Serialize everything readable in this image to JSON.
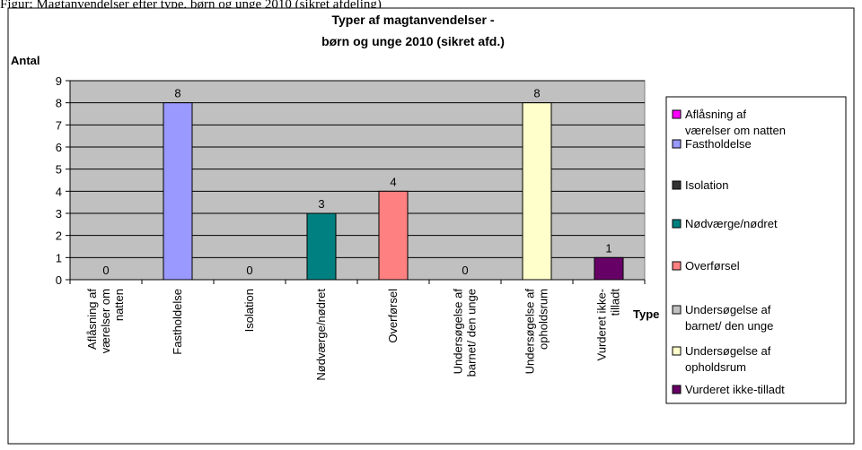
{
  "caption": "Figur: Magtanvendelser efter type, børn og unge 2010 (sikret afdeling)",
  "chart_data": {
    "type": "bar",
    "title_lines": [
      "Typer af magtanvendelser -",
      "børn og unge 2010 (sikret afd.)"
    ],
    "ylabel": "Antal",
    "xlabel": "Type",
    "ylim": [
      0,
      9
    ],
    "yticks": [
      0,
      1,
      2,
      3,
      4,
      5,
      6,
      7,
      8,
      9
    ],
    "grid": true,
    "legend_position": "right",
    "categories": [
      "Aflåsning af værelser om natten",
      "Fastholdelse",
      "Isolation",
      "Nødværge/nødret",
      "Overførsel",
      "Undersøgelse af barnet/ den unge",
      "Undersøgelse af opholdsrum",
      "Vurderet ikke-tilladt"
    ],
    "category_label_lines": [
      [
        "Aflåsning af",
        "værelser om",
        "natten"
      ],
      [
        "Fastholdelse"
      ],
      [
        "Isolation"
      ],
      [
        "Nødværge/nødret"
      ],
      [
        "Overførsel"
      ],
      [
        "Undersøgelse af",
        "barnet/ den unge"
      ],
      [
        "Undersøgelse af",
        "opholdsrum"
      ],
      [
        "Vurderet ikke-",
        "tilladt"
      ]
    ],
    "values": [
      0,
      8,
      0,
      3,
      4,
      0,
      8,
      1
    ],
    "colors": [
      "#FF00FF",
      "#9999FF",
      "#333333",
      "#008080",
      "#FF8080",
      "#C0C0C0",
      "#FFFFCC",
      "#660066"
    ],
    "legend_label_lines": [
      [
        "Aflåsning af",
        "værelser om natten"
      ],
      [
        "Fastholdelse"
      ],
      [
        "Isolation"
      ],
      [
        "Nødværge/nødret"
      ],
      [
        "Overførsel"
      ],
      [
        "Undersøgelse af",
        "barnet/ den unge"
      ],
      [
        "Undersøgelse af",
        "opholdsrum"
      ],
      [
        "Vurderet ikke-tilladt"
      ]
    ],
    "plot_background": "#C0C0C0"
  }
}
